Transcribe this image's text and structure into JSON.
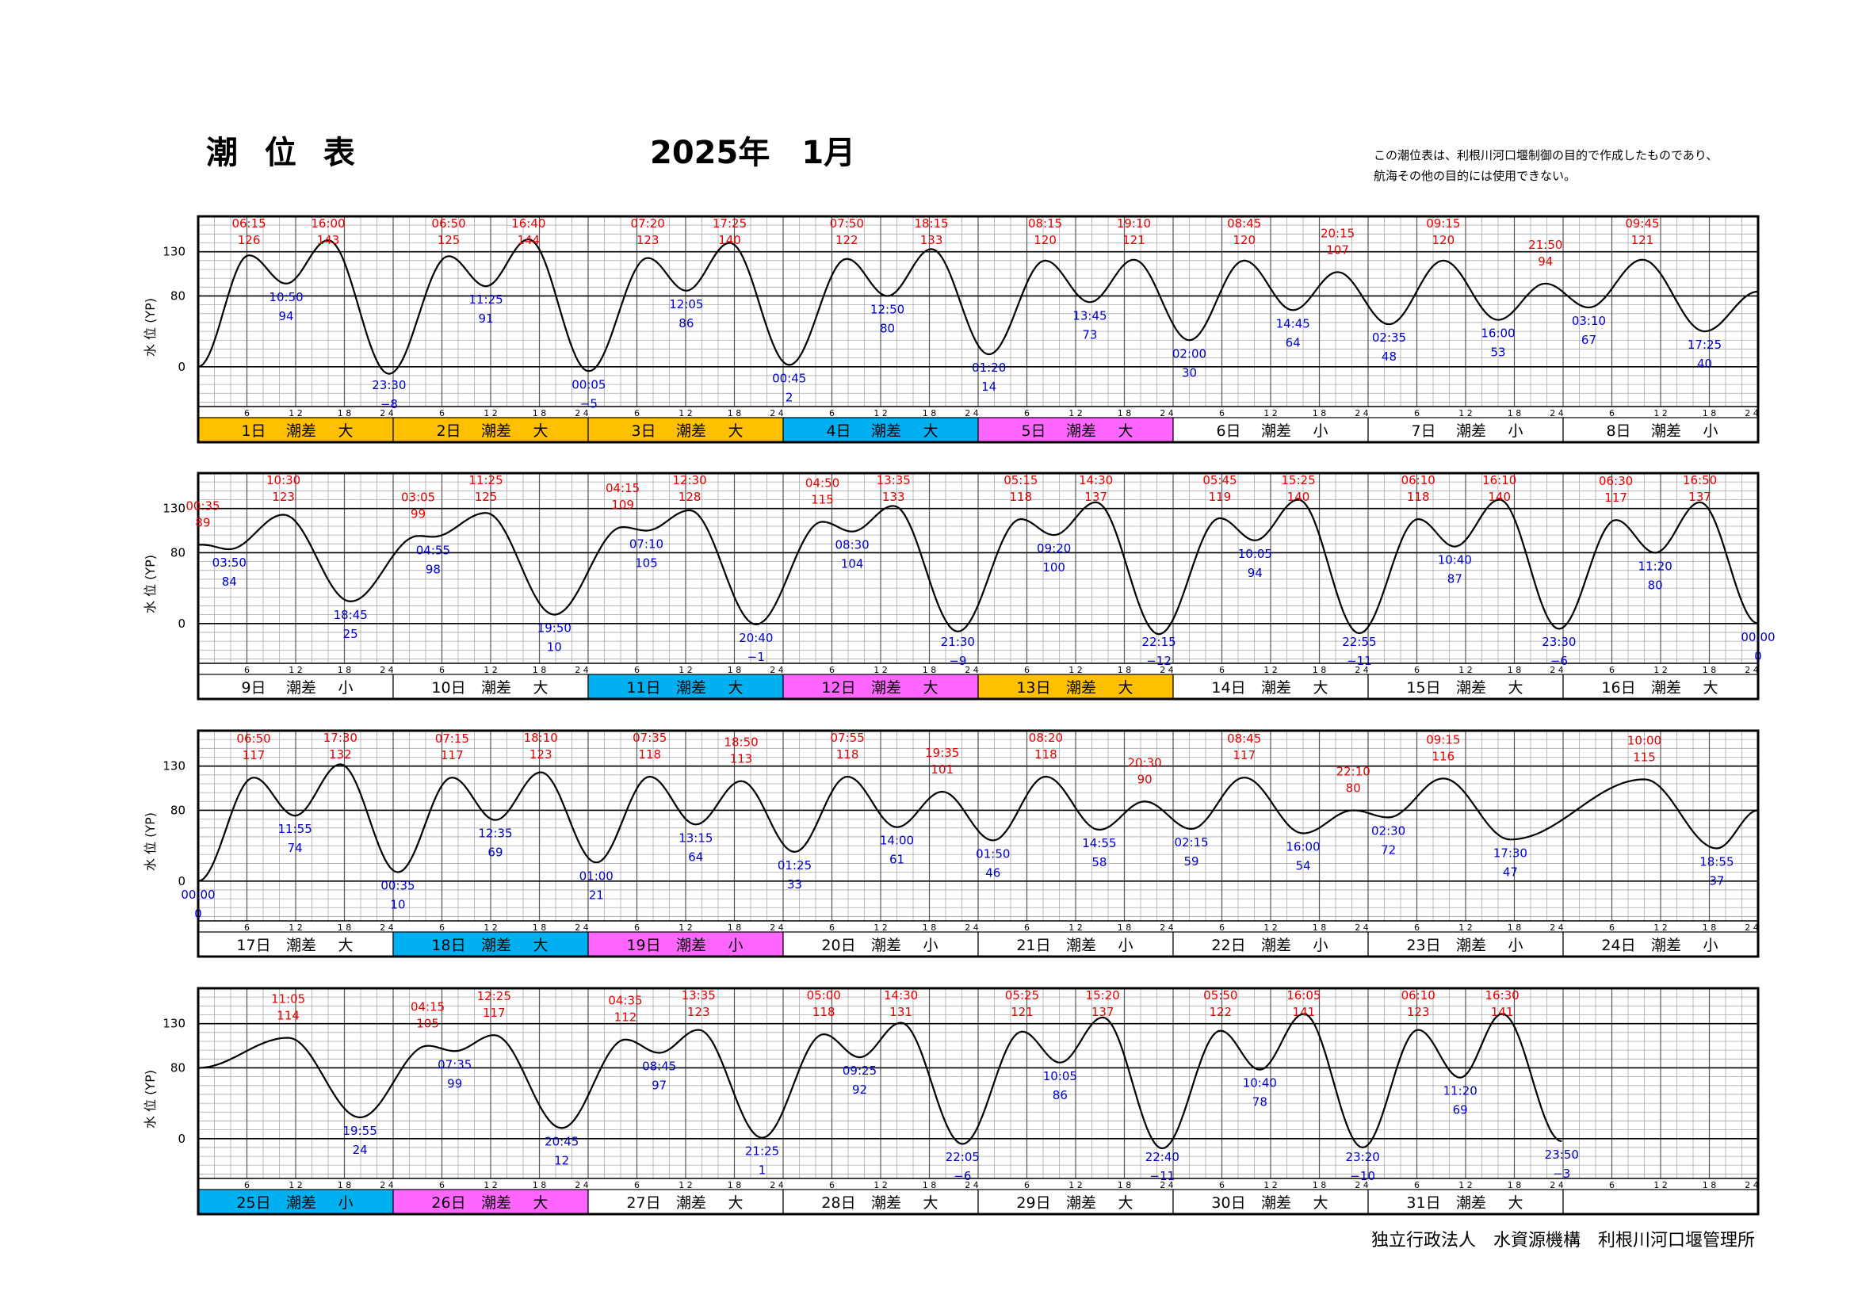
{
  "header": {
    "title": "潮 位 表",
    "date": "2025年　1月",
    "note_line1": "この潮位表は、利根川河口堰制御の目的で作成したものであり、",
    "note_line2": "航海その他の目的には使用できない。"
  },
  "footer": "独立行政法人　水資源機構　利根川河口堰管理所",
  "colors": {
    "orange": "#ffc000",
    "blue": "#00b0f0",
    "magenta": "#ff66ff",
    "white": "#ffffff",
    "curve": "#000000",
    "high": "#e60000",
    "low": "#0000cc"
  },
  "chart_data": {
    "type": "line",
    "xlabel": "",
    "ylabel": "水 位 (YP)",
    "yticks": [
      0,
      80,
      130
    ],
    "hour_ticks": [
      "6",
      "1 2",
      "1 8",
      "2 4"
    ],
    "rows": [
      {
        "days": [
          {
            "label": "1日",
            "diff": "潮差",
            "size": "大",
            "color": "orange"
          },
          {
            "label": "2日",
            "diff": "潮差",
            "size": "大",
            "color": "orange"
          },
          {
            "label": "3日",
            "diff": "潮差",
            "size": "大",
            "color": "orange"
          },
          {
            "label": "4日",
            "diff": "潮差",
            "size": "大",
            "color": "blue"
          },
          {
            "label": "5日",
            "diff": "潮差",
            "size": "大",
            "color": "magenta"
          },
          {
            "label": "6日",
            "diff": "潮差",
            "size": "小",
            "color": "white"
          },
          {
            "label": "7日",
            "diff": "潮差",
            "size": "小",
            "color": "white"
          },
          {
            "label": "8日",
            "diff": "潮差",
            "size": "小",
            "color": "white"
          }
        ],
        "start": 0,
        "end": 85,
        "extrema": [
          {
            "t": "06:15",
            "v": 126,
            "kind": "high",
            "day": 0
          },
          {
            "t": "10:50",
            "v": 94,
            "kind": "low",
            "day": 0
          },
          {
            "t": "16:00",
            "v": 143,
            "kind": "high",
            "day": 0
          },
          {
            "t": "23:30",
            "v": -8,
            "kind": "low",
            "day": 0
          },
          {
            "t": "06:50",
            "v": 125,
            "kind": "high",
            "day": 1
          },
          {
            "t": "11:25",
            "v": 91,
            "kind": "low",
            "day": 1
          },
          {
            "t": "16:40",
            "v": 144,
            "kind": "high",
            "day": 1
          },
          {
            "t": "00:05",
            "v": -5,
            "kind": "low",
            "day": 2
          },
          {
            "t": "07:20",
            "v": 123,
            "kind": "high",
            "day": 2
          },
          {
            "t": "12:05",
            "v": 86,
            "kind": "low",
            "day": 2
          },
          {
            "t": "17:25",
            "v": 140,
            "kind": "high",
            "day": 2
          },
          {
            "t": "00:45",
            "v": 2,
            "kind": "low",
            "day": 3
          },
          {
            "t": "07:50",
            "v": 122,
            "kind": "high",
            "day": 3
          },
          {
            "t": "12:50",
            "v": 80,
            "kind": "low",
            "day": 3
          },
          {
            "t": "18:15",
            "v": 133,
            "kind": "high",
            "day": 3
          },
          {
            "t": "01:20",
            "v": 14,
            "kind": "low",
            "day": 4
          },
          {
            "t": "08:15",
            "v": 120,
            "kind": "high",
            "day": 4
          },
          {
            "t": "13:45",
            "v": 73,
            "kind": "low",
            "day": 4
          },
          {
            "t": "19:10",
            "v": 121,
            "kind": "high",
            "day": 4
          },
          {
            "t": "02:00",
            "v": 30,
            "kind": "low",
            "day": 5
          },
          {
            "t": "08:45",
            "v": 120,
            "kind": "high",
            "day": 5
          },
          {
            "t": "14:45",
            "v": 64,
            "kind": "low",
            "day": 5
          },
          {
            "t": "20:15",
            "v": 107,
            "kind": "high",
            "day": 5
          },
          {
            "t": "02:35",
            "v": 48,
            "kind": "low",
            "day": 6
          },
          {
            "t": "09:15",
            "v": 120,
            "kind": "high",
            "day": 6
          },
          {
            "t": "16:00",
            "v": 53,
            "kind": "low",
            "day": 6
          },
          {
            "t": "21:50",
            "v": 94,
            "kind": "high",
            "day": 6
          },
          {
            "t": "03:10",
            "v": 67,
            "kind": "low",
            "day": 7
          },
          {
            "t": "09:45",
            "v": 121,
            "kind": "high",
            "day": 7
          },
          {
            "t": "17:25",
            "v": 40,
            "kind": "low",
            "day": 7
          }
        ]
      },
      {
        "days": [
          {
            "label": "9日",
            "diff": "潮差",
            "size": "小",
            "color": "white"
          },
          {
            "label": "10日",
            "diff": "潮差",
            "size": "大",
            "color": "white"
          },
          {
            "label": "11日",
            "diff": "潮差",
            "size": "大",
            "color": "blue"
          },
          {
            "label": "12日",
            "diff": "潮差",
            "size": "大",
            "color": "magenta"
          },
          {
            "label": "13日",
            "diff": "潮差",
            "size": "大",
            "color": "orange"
          },
          {
            "label": "14日",
            "diff": "潮差",
            "size": "大",
            "color": "white"
          },
          {
            "label": "15日",
            "diff": "潮差",
            "size": "大",
            "color": "white"
          },
          {
            "label": "16日",
            "diff": "潮差",
            "size": "大",
            "color": "white"
          }
        ],
        "start": 89,
        "end": 0,
        "extrema": [
          {
            "t": "00:35",
            "v": 89,
            "kind": "high",
            "day": 0
          },
          {
            "t": "03:50",
            "v": 84,
            "kind": "low",
            "day": 0
          },
          {
            "t": "10:30",
            "v": 123,
            "kind": "high",
            "day": 0
          },
          {
            "t": "18:45",
            "v": 25,
            "kind": "low",
            "day": 0
          },
          {
            "t": "03:05",
            "v": 99,
            "kind": "high",
            "day": 1
          },
          {
            "t": "04:55",
            "v": 98,
            "kind": "low",
            "day": 1
          },
          {
            "t": "11:25",
            "v": 125,
            "kind": "high",
            "day": 1
          },
          {
            "t": "19:50",
            "v": 10,
            "kind": "low",
            "day": 1
          },
          {
            "t": "04:15",
            "v": 109,
            "kind": "high",
            "day": 2
          },
          {
            "t": "07:10",
            "v": 105,
            "kind": "low",
            "day": 2
          },
          {
            "t": "12:30",
            "v": 128,
            "kind": "high",
            "day": 2
          },
          {
            "t": "20:40",
            "v": -1,
            "kind": "low",
            "day": 2
          },
          {
            "t": "04:50",
            "v": 115,
            "kind": "high",
            "day": 3
          },
          {
            "t": "08:30",
            "v": 104,
            "kind": "low",
            "day": 3
          },
          {
            "t": "13:35",
            "v": 133,
            "kind": "high",
            "day": 3
          },
          {
            "t": "21:30",
            "v": -9,
            "kind": "low",
            "day": 3
          },
          {
            "t": "05:15",
            "v": 118,
            "kind": "high",
            "day": 4
          },
          {
            "t": "09:20",
            "v": 100,
            "kind": "low",
            "day": 4
          },
          {
            "t": "14:30",
            "v": 137,
            "kind": "high",
            "day": 4
          },
          {
            "t": "22:15",
            "v": -12,
            "kind": "low",
            "day": 4
          },
          {
            "t": "05:45",
            "v": 119,
            "kind": "high",
            "day": 5
          },
          {
            "t": "10:05",
            "v": 94,
            "kind": "low",
            "day": 5
          },
          {
            "t": "15:25",
            "v": 140,
            "kind": "high",
            "day": 5
          },
          {
            "t": "22:55",
            "v": -11,
            "kind": "low",
            "day": 5
          },
          {
            "t": "06:10",
            "v": 118,
            "kind": "high",
            "day": 6
          },
          {
            "t": "10:40",
            "v": 87,
            "kind": "low",
            "day": 6
          },
          {
            "t": "16:10",
            "v": 140,
            "kind": "high",
            "day": 6
          },
          {
            "t": "23:30",
            "v": -6,
            "kind": "low",
            "day": 6
          },
          {
            "t": "06:30",
            "v": 117,
            "kind": "high",
            "day": 7
          },
          {
            "t": "11:20",
            "v": 80,
            "kind": "low",
            "day": 7
          },
          {
            "t": "16:50",
            "v": 137,
            "kind": "high",
            "day": 7
          },
          {
            "t": "00:00",
            "v": 0,
            "kind": "low",
            "day": 8
          }
        ]
      },
      {
        "days": [
          {
            "label": "17日",
            "diff": "潮差",
            "size": "大",
            "color": "white"
          },
          {
            "label": "18日",
            "diff": "潮差",
            "size": "大",
            "color": "blue"
          },
          {
            "label": "19日",
            "diff": "潮差",
            "size": "小",
            "color": "magenta"
          },
          {
            "label": "20日",
            "diff": "潮差",
            "size": "小",
            "color": "white"
          },
          {
            "label": "21日",
            "diff": "潮差",
            "size": "小",
            "color": "white"
          },
          {
            "label": "22日",
            "diff": "潮差",
            "size": "小",
            "color": "white"
          },
          {
            "label": "23日",
            "diff": "潮差",
            "size": "小",
            "color": "white"
          },
          {
            "label": "24日",
            "diff": "潮差",
            "size": "小",
            "color": "white"
          }
        ],
        "start": 0,
        "end": 80,
        "extrema": [
          {
            "t": "00:00",
            "v": 0,
            "kind": "low",
            "day": 0
          },
          {
            "t": "06:50",
            "v": 117,
            "kind": "high",
            "day": 0
          },
          {
            "t": "11:55",
            "v": 74,
            "kind": "low",
            "day": 0
          },
          {
            "t": "17:30",
            "v": 132,
            "kind": "high",
            "day": 0
          },
          {
            "t": "00:35",
            "v": 10,
            "kind": "low",
            "day": 1
          },
          {
            "t": "07:15",
            "v": 117,
            "kind": "high",
            "day": 1
          },
          {
            "t": "12:35",
            "v": 69,
            "kind": "low",
            "day": 1
          },
          {
            "t": "18:10",
            "v": 123,
            "kind": "high",
            "day": 1
          },
          {
            "t": "01:00",
            "v": 21,
            "kind": "low",
            "day": 2
          },
          {
            "t": "07:35",
            "v": 118,
            "kind": "high",
            "day": 2
          },
          {
            "t": "13:15",
            "v": 64,
            "kind": "low",
            "day": 2
          },
          {
            "t": "18:50",
            "v": 113,
            "kind": "high",
            "day": 2
          },
          {
            "t": "01:25",
            "v": 33,
            "kind": "low",
            "day": 3
          },
          {
            "t": "07:55",
            "v": 118,
            "kind": "high",
            "day": 3
          },
          {
            "t": "14:00",
            "v": 61,
            "kind": "low",
            "day": 3
          },
          {
            "t": "19:35",
            "v": 101,
            "kind": "high",
            "day": 3
          },
          {
            "t": "01:50",
            "v": 46,
            "kind": "low",
            "day": 4
          },
          {
            "t": "08:20",
            "v": 118,
            "kind": "high",
            "day": 4
          },
          {
            "t": "14:55",
            "v": 58,
            "kind": "low",
            "day": 4
          },
          {
            "t": "20:30",
            "v": 90,
            "kind": "high",
            "day": 4
          },
          {
            "t": "02:15",
            "v": 59,
            "kind": "low",
            "day": 5
          },
          {
            "t": "08:45",
            "v": 117,
            "kind": "high",
            "day": 5
          },
          {
            "t": "16:00",
            "v": 54,
            "kind": "low",
            "day": 5
          },
          {
            "t": "22:10",
            "v": 80,
            "kind": "high",
            "day": 5
          },
          {
            "t": "02:30",
            "v": 72,
            "kind": "low",
            "day": 6
          },
          {
            "t": "09:15",
            "v": 116,
            "kind": "high",
            "day": 6
          },
          {
            "t": "17:30",
            "v": 47,
            "kind": "low",
            "day": 6
          },
          {
            "t": "10:00",
            "v": 115,
            "kind": "high",
            "day": 7
          },
          {
            "t": "18:55",
            "v": 37,
            "kind": "low",
            "day": 7
          }
        ]
      },
      {
        "days": [
          {
            "label": "25日",
            "diff": "潮差",
            "size": "小",
            "color": "blue"
          },
          {
            "label": "26日",
            "diff": "潮差",
            "size": "大",
            "color": "magenta"
          },
          {
            "label": "27日",
            "diff": "潮差",
            "size": "大",
            "color": "white"
          },
          {
            "label": "28日",
            "diff": "潮差",
            "size": "大",
            "color": "white"
          },
          {
            "label": "29日",
            "diff": "潮差",
            "size": "大",
            "color": "white"
          },
          {
            "label": "30日",
            "diff": "潮差",
            "size": "大",
            "color": "white"
          },
          {
            "label": "31日",
            "diff": "潮差",
            "size": "大",
            "color": "white"
          },
          {
            "label": "",
            "diff": "",
            "size": "",
            "color": "white"
          }
        ],
        "start": 80,
        "end": null,
        "extrema": [
          {
            "t": "11:05",
            "v": 114,
            "kind": "high",
            "day": 0
          },
          {
            "t": "19:55",
            "v": 24,
            "kind": "low",
            "day": 0
          },
          {
            "t": "04:15",
            "v": 105,
            "kind": "high",
            "day": 1
          },
          {
            "t": "07:35",
            "v": 99,
            "kind": "low",
            "day": 1
          },
          {
            "t": "12:25",
            "v": 117,
            "kind": "high",
            "day": 1
          },
          {
            "t": "20:45",
            "v": 12,
            "kind": "low",
            "day": 1
          },
          {
            "t": "04:35",
            "v": 112,
            "kind": "high",
            "day": 2
          },
          {
            "t": "08:45",
            "v": 97,
            "kind": "low",
            "day": 2
          },
          {
            "t": "13:35",
            "v": 123,
            "kind": "high",
            "day": 2
          },
          {
            "t": "21:25",
            "v": 1,
            "kind": "low",
            "day": 2
          },
          {
            "t": "05:00",
            "v": 118,
            "kind": "high",
            "day": 3
          },
          {
            "t": "09:25",
            "v": 92,
            "kind": "low",
            "day": 3
          },
          {
            "t": "14:30",
            "v": 131,
            "kind": "high",
            "day": 3
          },
          {
            "t": "22:05",
            "v": -6,
            "kind": "low",
            "day": 3
          },
          {
            "t": "05:25",
            "v": 121,
            "kind": "high",
            "day": 4
          },
          {
            "t": "10:05",
            "v": 86,
            "kind": "low",
            "day": 4
          },
          {
            "t": "15:20",
            "v": 137,
            "kind": "high",
            "day": 4
          },
          {
            "t": "22:40",
            "v": -11,
            "kind": "low",
            "day": 4
          },
          {
            "t": "05:50",
            "v": 122,
            "kind": "high",
            "day": 5
          },
          {
            "t": "10:40",
            "v": 78,
            "kind": "low",
            "day": 5
          },
          {
            "t": "16:05",
            "v": 141,
            "kind": "high",
            "day": 5
          },
          {
            "t": "23:20",
            "v": -10,
            "kind": "low",
            "day": 5
          },
          {
            "t": "06:10",
            "v": 123,
            "kind": "high",
            "day": 6
          },
          {
            "t": "11:20",
            "v": 69,
            "kind": "low",
            "day": 6
          },
          {
            "t": "16:30",
            "v": 141,
            "kind": "high",
            "day": 6
          },
          {
            "t": "23:50",
            "v": -3,
            "kind": "low",
            "day": 6
          }
        ]
      }
    ]
  }
}
